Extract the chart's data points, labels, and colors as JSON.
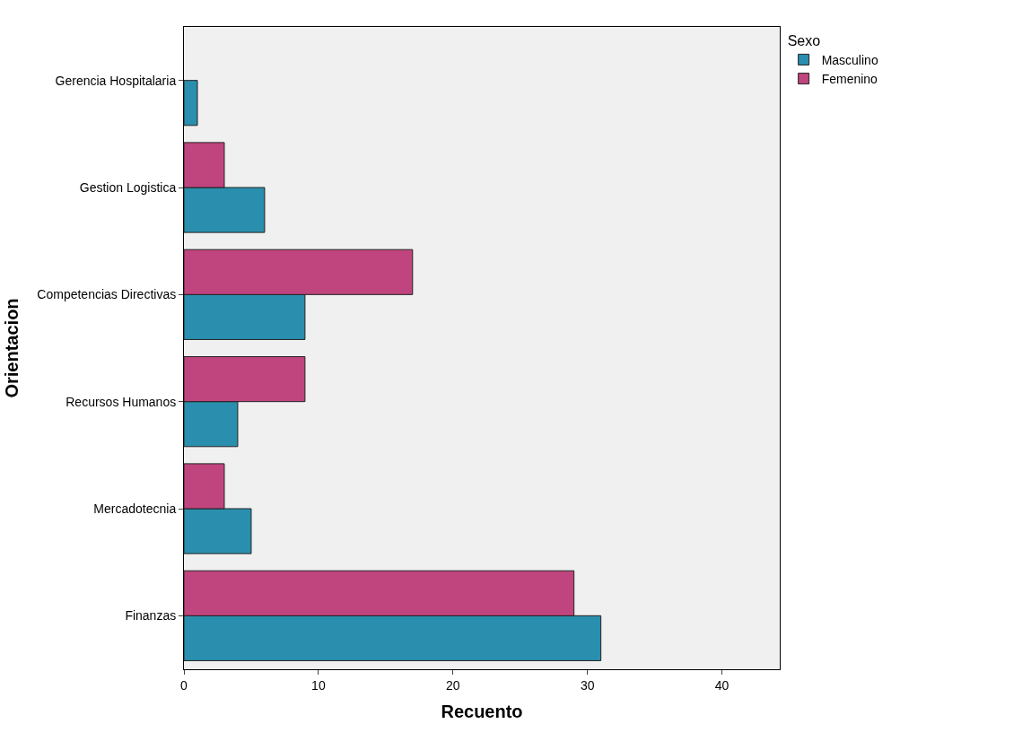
{
  "chart_data": {
    "type": "bar",
    "orientation": "horizontal",
    "xlabel": "Recuento",
    "ylabel": "Orientacion",
    "legend_title": "Sexo",
    "legend": "top right",
    "categories": [
      "Gerencia Hospitalaria",
      "Gestion Logistica",
      "Competencias Directivas",
      "Recursos Humanos",
      "Mercadotecnia",
      "Finanzas"
    ],
    "series": [
      {
        "name": "Masculino",
        "color": "#2a8fae",
        "values": [
          1,
          6,
          9,
          4,
          5,
          31
        ]
      },
      {
        "name": "Femenino",
        "color": "#c0457e",
        "values": [
          null,
          3,
          17,
          9,
          3,
          29
        ]
      }
    ],
    "xlim": [
      0,
      44.3
    ],
    "xticks": [
      0,
      10,
      20,
      30,
      40
    ],
    "grid": false
  }
}
